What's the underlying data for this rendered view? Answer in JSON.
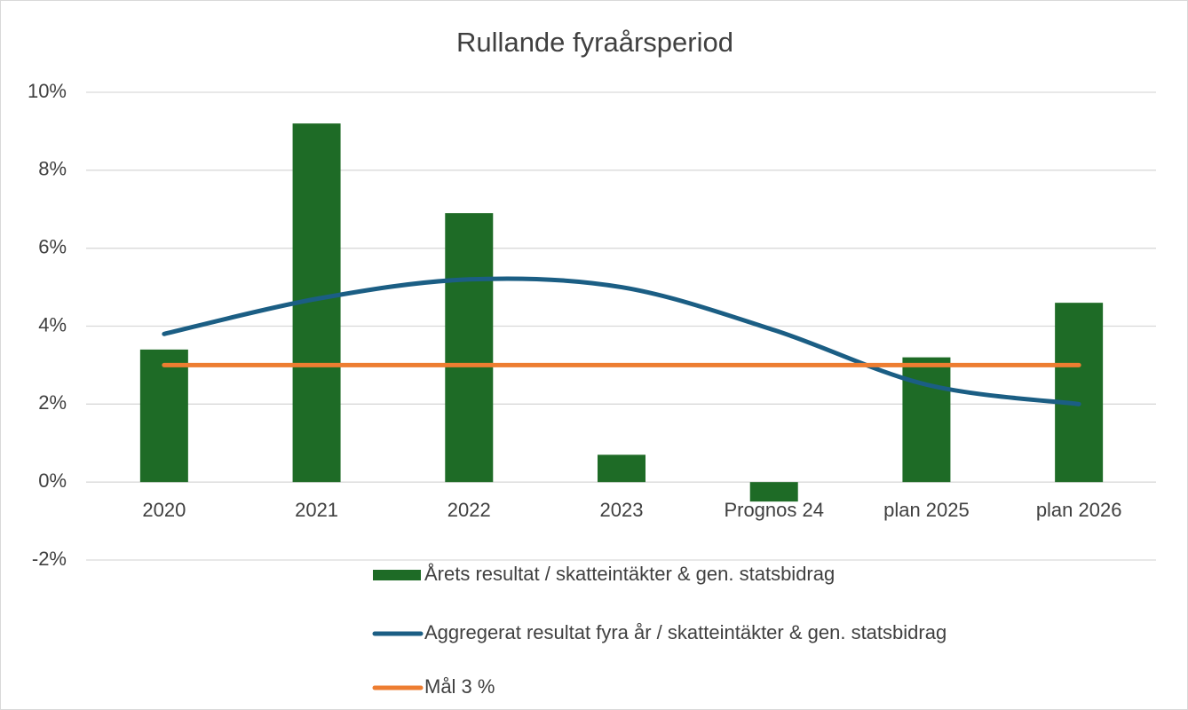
{
  "chart_data": {
    "type": "combo",
    "title": "Rullande fyraårsperiod",
    "categories": [
      "2020",
      "2021",
      "2022",
      "2023",
      "Prognos 24",
      "plan 2025",
      "plan 2026"
    ],
    "series": [
      {
        "name": "Årets resultat / skatteintäkter & gen. statsbidrag",
        "type": "bar",
        "color": "#1e6b26",
        "values": [
          3.4,
          9.2,
          6.9,
          0.7,
          -0.5,
          3.2,
          4.6
        ]
      },
      {
        "name": "Aggregerat resultat fyra år / skatteintäkter & gen. statsbidrag",
        "type": "line",
        "color": "#1b5e84",
        "smooth": true,
        "values": [
          3.8,
          4.7,
          5.2,
          5.0,
          3.9,
          2.5,
          2.0
        ]
      },
      {
        "name": "Mål 3 %",
        "type": "line",
        "color": "#ed7d31",
        "values": [
          3,
          3,
          3,
          3,
          3,
          3,
          3
        ]
      }
    ],
    "ylim": [
      -2,
      10
    ],
    "yticks": [
      {
        "value": -2,
        "label": "-2%"
      },
      {
        "value": 0,
        "label": "0%"
      },
      {
        "value": 2,
        "label": "2%"
      },
      {
        "value": 4,
        "label": "4%"
      },
      {
        "value": 6,
        "label": "6%"
      },
      {
        "value": 8,
        "label": "8%"
      },
      {
        "value": 10,
        "label": "10%"
      }
    ],
    "grid": true,
    "legend": "bottom"
  }
}
